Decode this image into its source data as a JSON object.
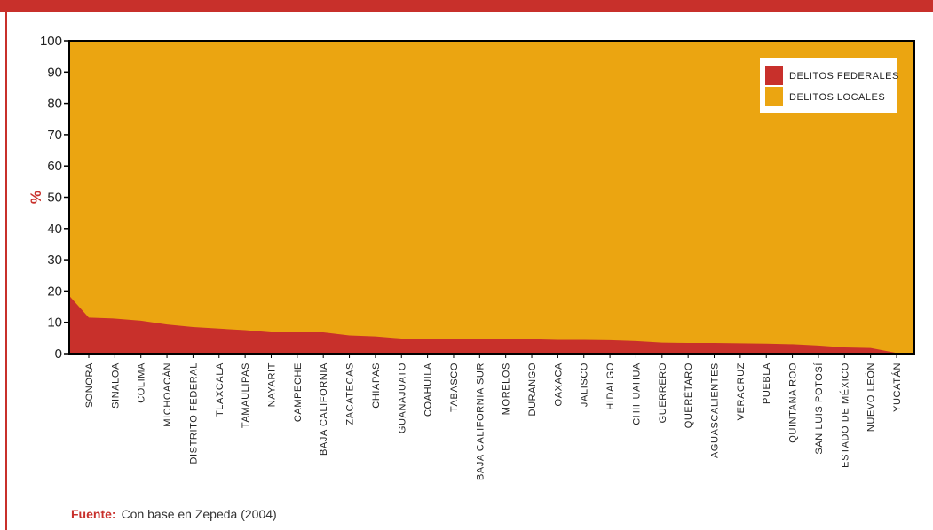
{
  "colors": {
    "frame": "#c8302b",
    "federal": "#c8302b",
    "local": "#eba511",
    "axis": "#000000",
    "text": "#222222"
  },
  "chart_data": {
    "type": "area",
    "stacked": true,
    "percent_stacked": true,
    "ylabel": "%",
    "ylim": [
      0,
      100
    ],
    "yticks": [
      0,
      10,
      20,
      30,
      40,
      50,
      60,
      70,
      80,
      90,
      100
    ],
    "grid": false,
    "legend_position": "top-right",
    "categories": [
      "SONORA",
      "SINALOA",
      "COLIMA",
      "MICHOACÁN",
      "DISTRITO FEDERAL",
      "TLAXCALA",
      "TAMAULIPAS",
      "NAYARIT",
      "CAMPECHE",
      "BAJA CALIFORNIA",
      "ZACATECAS",
      "CHIAPAS",
      "GUANAJUATO",
      "COAHUILA",
      "TABASCO",
      "BAJA CALIFORNIA SUR",
      "MORELOS",
      "DURANGO",
      "OAXACA",
      "JALISCO",
      "HIDALGO",
      "CHIHUAHUA",
      "GUERRERO",
      "QUERÉTARO",
      "AGUASCALIENTES",
      "VERACRUZ",
      "PUEBLA",
      "QUINTANA ROO",
      "SAN LUIS POTOSÍ",
      "ESTADO DE MÉXICO",
      "NUEVO LEÓN",
      "YUCATÁN"
    ],
    "series": [
      {
        "name": "DELITOS FEDERALES",
        "values": [
          11.5,
          11.2,
          10.5,
          9.3,
          8.5,
          8.0,
          7.5,
          6.8,
          6.8,
          6.8,
          5.8,
          5.5,
          4.8,
          4.8,
          4.8,
          4.8,
          4.7,
          4.6,
          4.4,
          4.4,
          4.3,
          4.0,
          3.5,
          3.4,
          3.4,
          3.3,
          3.2,
          3.0,
          2.6,
          2.0,
          1.8,
          0.2
        ]
      },
      {
        "name": "DELITOS LOCALES",
        "values": [
          88.5,
          88.8,
          89.5,
          90.7,
          91.5,
          92.0,
          92.5,
          93.2,
          93.2,
          93.2,
          94.2,
          94.5,
          95.2,
          95.2,
          95.2,
          95.2,
          95.3,
          95.4,
          95.6,
          95.6,
          95.7,
          96.0,
          96.5,
          96.6,
          96.6,
          96.7,
          96.8,
          97.0,
          97.4,
          98.0,
          98.2,
          99.8
        ]
      }
    ],
    "left_edge_federal_value": 18.5
  },
  "legend": {
    "items": [
      {
        "label": "DELITOS FEDERALES",
        "color": "#c8302b"
      },
      {
        "label": "DELITOS LOCALES",
        "color": "#eba511"
      }
    ]
  },
  "footer": {
    "source_label": "Fuente:",
    "source_text": "Con base en Zepeda (2004)"
  }
}
